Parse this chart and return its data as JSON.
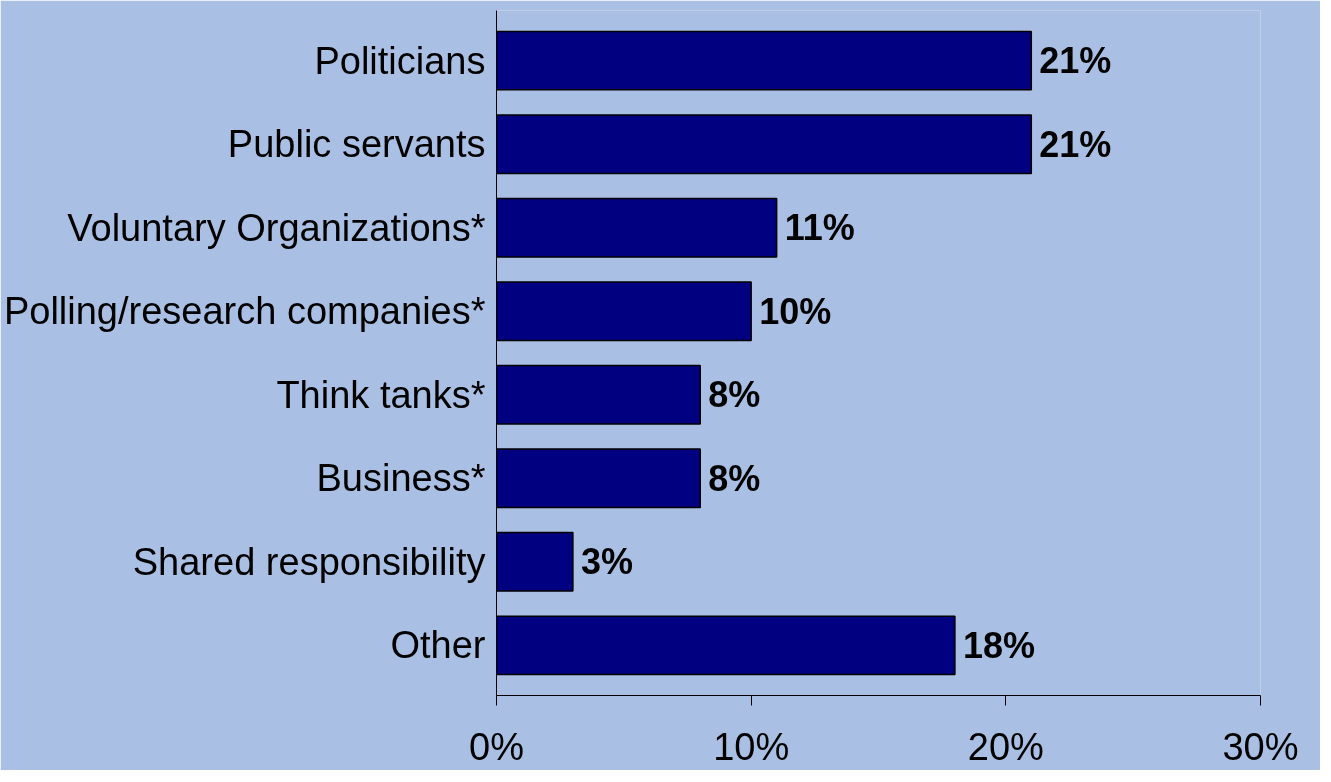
{
  "chart_data": {
    "type": "bar",
    "orientation": "horizontal",
    "categories": [
      "Politicians",
      "Public servants",
      "Voluntary Organizations*",
      "Polling/research companies*",
      "Think tanks*",
      "Business*",
      "Shared responsibility",
      "Other"
    ],
    "values": [
      21,
      21,
      11,
      10,
      8,
      8,
      3,
      18
    ],
    "value_labels": [
      "21%",
      "21%",
      "11%",
      "10%",
      "8%",
      "8%",
      "3%",
      "18%"
    ],
    "color": "#000080",
    "xlim": [
      0,
      30
    ],
    "xticks": [
      {
        "value": 0,
        "label": "0%"
      },
      {
        "value": 10,
        "label": "10%"
      },
      {
        "value": 20,
        "label": "20%"
      },
      {
        "value": 30,
        "label": "30%"
      }
    ],
    "grid": false
  }
}
